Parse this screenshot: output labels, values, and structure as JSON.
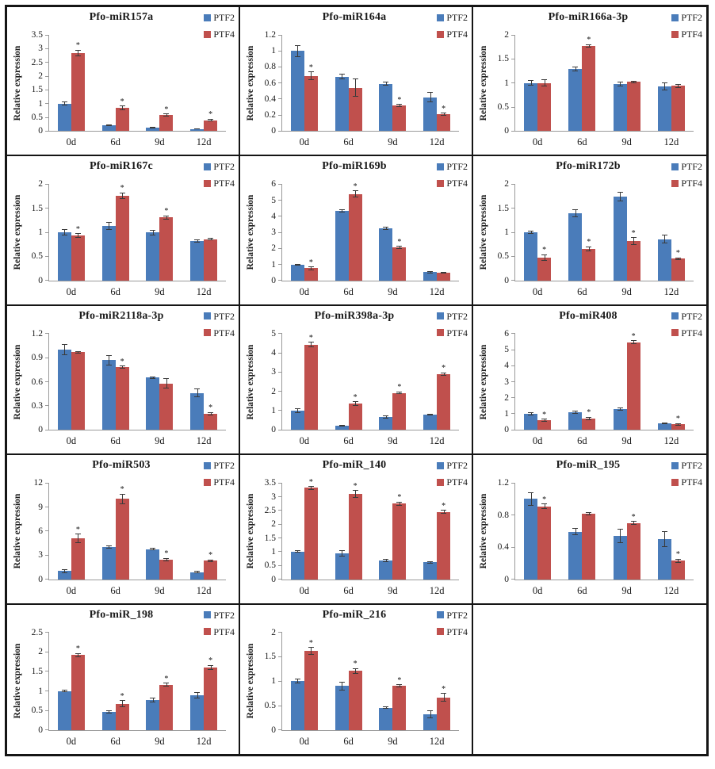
{
  "figure": {
    "ylabel": "Relative expression",
    "categories": [
      "0d",
      "6d",
      "9d",
      "12d"
    ],
    "legend": [
      "PTF2",
      "PTF4"
    ],
    "colors": {
      "ptf2": "#4A7CBA",
      "ptf4": "#C0504D",
      "axis": "#9A9A9A",
      "border": "#151515"
    }
  },
  "chart_data": [
    {
      "type": "bar",
      "title": "Pfo-miR157a",
      "ylabel": "Relative expression",
      "categories": [
        "0d",
        "6d",
        "9d",
        "12d"
      ],
      "ylim": [
        0,
        3.5
      ],
      "yticks": [
        0,
        0.5,
        1,
        1.5,
        2,
        2.5,
        3,
        3.5
      ],
      "series": [
        {
          "name": "PTF2",
          "color": "#4A7CBA",
          "values": [
            1.0,
            0.22,
            0.13,
            0.08
          ],
          "errors": [
            0.06,
            0.02,
            0.02,
            0.01
          ],
          "sig": [
            false,
            false,
            false,
            false
          ]
        },
        {
          "name": "PTF4",
          "color": "#C0504D",
          "values": [
            2.85,
            0.84,
            0.58,
            0.4
          ],
          "errors": [
            0.1,
            0.07,
            0.04,
            0.03
          ],
          "sig": [
            true,
            true,
            true,
            true
          ]
        }
      ]
    },
    {
      "type": "bar",
      "title": "Pfo-miR164a",
      "ylabel": "Relative expression",
      "categories": [
        "0d",
        "6d",
        "9d",
        "12d"
      ],
      "ylim": [
        0,
        1.2
      ],
      "yticks": [
        0,
        0.2,
        0.4,
        0.6,
        0.8,
        1,
        1.2
      ],
      "series": [
        {
          "name": "PTF2",
          "color": "#4A7CBA",
          "values": [
            1.0,
            0.68,
            0.59,
            0.42
          ],
          "errors": [
            0.07,
            0.03,
            0.02,
            0.06
          ],
          "sig": [
            false,
            false,
            false,
            false
          ]
        },
        {
          "name": "PTF4",
          "color": "#C0504D",
          "values": [
            0.69,
            0.54,
            0.32,
            0.21
          ],
          "errors": [
            0.05,
            0.11,
            0.015,
            0.015
          ],
          "sig": [
            true,
            false,
            true,
            true
          ]
        }
      ]
    },
    {
      "type": "bar",
      "title": "Pfo-miR166a-3p",
      "ylabel": "Relative expression",
      "categories": [
        "0d",
        "6d",
        "9d",
        "12d"
      ],
      "ylim": [
        0,
        2
      ],
      "yticks": [
        0,
        0.5,
        1,
        1.5,
        2
      ],
      "series": [
        {
          "name": "PTF2",
          "color": "#4A7CBA",
          "values": [
            1.0,
            1.29,
            0.98,
            0.93
          ],
          "errors": [
            0.05,
            0.04,
            0.04,
            0.08
          ],
          "sig": [
            false,
            false,
            false,
            false
          ]
        },
        {
          "name": "PTF4",
          "color": "#C0504D",
          "values": [
            1.0,
            1.77,
            1.02,
            0.94
          ],
          "errors": [
            0.07,
            0.03,
            0.02,
            0.03
          ],
          "sig": [
            false,
            true,
            false,
            false
          ]
        }
      ]
    },
    {
      "type": "bar",
      "title": "Pfo-miR167c",
      "ylabel": "Relative expression",
      "categories": [
        "0d",
        "6d",
        "9d",
        "12d"
      ],
      "ylim": [
        0,
        2
      ],
      "yticks": [
        0,
        0.5,
        1,
        1.5,
        2
      ],
      "series": [
        {
          "name": "PTF2",
          "color": "#4A7CBA",
          "values": [
            1.0,
            1.13,
            1.0,
            0.82
          ],
          "errors": [
            0.06,
            0.07,
            0.05,
            0.02
          ],
          "sig": [
            false,
            false,
            false,
            false
          ]
        },
        {
          "name": "PTF4",
          "color": "#C0504D",
          "values": [
            0.93,
            1.76,
            1.31,
            0.86
          ],
          "errors": [
            0.04,
            0.06,
            0.03,
            0.02
          ],
          "sig": [
            true,
            true,
            true,
            false
          ]
        }
      ]
    },
    {
      "type": "bar",
      "title": "Pfo-miR169b",
      "ylabel": "Relative expression",
      "categories": [
        "0d",
        "6d",
        "9d",
        "12d"
      ],
      "ylim": [
        0,
        6
      ],
      "yticks": [
        0,
        1,
        2,
        3,
        4,
        5,
        6
      ],
      "series": [
        {
          "name": "PTF2",
          "color": "#4A7CBA",
          "values": [
            0.97,
            4.33,
            3.24,
            0.52
          ],
          "errors": [
            0.04,
            0.08,
            0.07,
            0.05
          ],
          "sig": [
            false,
            false,
            false,
            false
          ]
        },
        {
          "name": "PTF4",
          "color": "#C0504D",
          "values": [
            0.76,
            5.38,
            2.06,
            0.48
          ],
          "errors": [
            0.08,
            0.2,
            0.08,
            0.04
          ],
          "sig": [
            true,
            true,
            true,
            false
          ]
        }
      ]
    },
    {
      "type": "bar",
      "title": "Pfo-miR172b",
      "ylabel": "Relative expression",
      "categories": [
        "0d",
        "6d",
        "9d",
        "12d"
      ],
      "ylim": [
        0,
        2
      ],
      "yticks": [
        0,
        0.5,
        1,
        1.5,
        2
      ],
      "series": [
        {
          "name": "PTF2",
          "color": "#4A7CBA",
          "values": [
            1.0,
            1.4,
            1.75,
            0.86
          ],
          "errors": [
            0.03,
            0.07,
            0.09,
            0.08
          ],
          "sig": [
            false,
            false,
            false,
            false
          ]
        },
        {
          "name": "PTF4",
          "color": "#C0504D",
          "values": [
            0.48,
            0.66,
            0.82,
            0.45
          ],
          "errors": [
            0.06,
            0.04,
            0.07,
            0.02
          ],
          "sig": [
            true,
            true,
            true,
            true
          ]
        }
      ]
    },
    {
      "type": "bar",
      "title": "Pfo-miR2118a-3p",
      "ylabel": "Relative expression",
      "categories": [
        "0d",
        "6d",
        "9d",
        "12d"
      ],
      "ylim": [
        0,
        1.2
      ],
      "yticks": [
        0,
        0.3,
        0.6,
        0.9,
        1.2
      ],
      "series": [
        {
          "name": "PTF2",
          "color": "#4A7CBA",
          "values": [
            1.0,
            0.87,
            0.65,
            0.46
          ],
          "errors": [
            0.06,
            0.06,
            0.01,
            0.05
          ],
          "sig": [
            false,
            false,
            false,
            false
          ]
        },
        {
          "name": "PTF4",
          "color": "#C0504D",
          "values": [
            0.97,
            0.78,
            0.58,
            0.2
          ],
          "errors": [
            0.01,
            0.015,
            0.06,
            0.015
          ],
          "sig": [
            false,
            true,
            false,
            true
          ]
        }
      ]
    },
    {
      "type": "bar",
      "title": "Pfo-miR398a-3p",
      "ylabel": "Relative expression",
      "categories": [
        "0d",
        "6d",
        "9d",
        "12d"
      ],
      "ylim": [
        0,
        5
      ],
      "yticks": [
        0,
        1,
        2,
        3,
        4,
        5
      ],
      "series": [
        {
          "name": "PTF2",
          "color": "#4A7CBA",
          "values": [
            1.0,
            0.22,
            0.68,
            0.8
          ],
          "errors": [
            0.09,
            0.03,
            0.06,
            0.03
          ],
          "sig": [
            false,
            false,
            false,
            false
          ]
        },
        {
          "name": "PTF4",
          "color": "#C0504D",
          "values": [
            4.42,
            1.35,
            1.92,
            2.9
          ],
          "errors": [
            0.12,
            0.1,
            0.05,
            0.06
          ],
          "sig": [
            true,
            true,
            true,
            true
          ]
        }
      ]
    },
    {
      "type": "bar",
      "title": "Pfo-miR408",
      "ylabel": "Relative expression",
      "categories": [
        "0d",
        "6d",
        "9d",
        "12d"
      ],
      "ylim": [
        0,
        6
      ],
      "yticks": [
        0,
        1,
        2,
        3,
        4,
        5,
        6
      ],
      "series": [
        {
          "name": "PTF2",
          "color": "#4A7CBA",
          "values": [
            1.0,
            1.1,
            1.3,
            0.4
          ],
          "errors": [
            0.08,
            0.08,
            0.07,
            0.04
          ],
          "sig": [
            false,
            false,
            false,
            false
          ]
        },
        {
          "name": "PTF4",
          "color": "#C0504D",
          "values": [
            0.6,
            0.7,
            5.45,
            0.35
          ],
          "errors": [
            0.06,
            0.08,
            0.1,
            0.05
          ],
          "sig": [
            true,
            true,
            true,
            true
          ]
        }
      ]
    },
    {
      "type": "bar",
      "title": "Pfo-miR503",
      "ylabel": "Relative expression",
      "categories": [
        "0d",
        "6d",
        "9d",
        "12d"
      ],
      "ylim": [
        0,
        12
      ],
      "yticks": [
        0,
        3,
        6,
        9,
        12
      ],
      "series": [
        {
          "name": "PTF2",
          "color": "#4A7CBA",
          "values": [
            1.0,
            4.0,
            3.75,
            0.9
          ],
          "errors": [
            0.15,
            0.12,
            0.1,
            0.1
          ],
          "sig": [
            false,
            false,
            false,
            false
          ]
        },
        {
          "name": "PTF4",
          "color": "#C0504D",
          "values": [
            5.1,
            10.0,
            2.45,
            2.3
          ],
          "errors": [
            0.5,
            0.6,
            0.15,
            0.1
          ],
          "sig": [
            true,
            true,
            true,
            true
          ]
        }
      ]
    },
    {
      "type": "bar",
      "title": "Pfo-miR_140",
      "ylabel": "Relative expression",
      "categories": [
        "0d",
        "6d",
        "9d",
        "12d"
      ],
      "ylim": [
        0,
        3.5
      ],
      "yticks": [
        0,
        0.5,
        1,
        1.5,
        2,
        2.5,
        3,
        3.5
      ],
      "series": [
        {
          "name": "PTF2",
          "color": "#4A7CBA",
          "values": [
            1.0,
            0.95,
            0.68,
            0.61
          ],
          "errors": [
            0.03,
            0.1,
            0.03,
            0.03
          ],
          "sig": [
            false,
            false,
            false,
            false
          ]
        },
        {
          "name": "PTF4",
          "color": "#C0504D",
          "values": [
            3.32,
            3.1,
            2.75,
            2.45
          ],
          "errors": [
            0.05,
            0.12,
            0.06,
            0.06
          ],
          "sig": [
            true,
            true,
            true,
            true
          ]
        }
      ]
    },
    {
      "type": "bar",
      "title": "Pfo-miR_195",
      "ylabel": "Relative expression",
      "categories": [
        "0d",
        "6d",
        "9d",
        "12d"
      ],
      "ylim": [
        0,
        1.2
      ],
      "yticks": [
        0,
        0.4,
        0.8,
        1.2
      ],
      "series": [
        {
          "name": "PTF2",
          "color": "#4A7CBA",
          "values": [
            1.0,
            0.59,
            0.54,
            0.5
          ],
          "errors": [
            0.08,
            0.04,
            0.08,
            0.09
          ],
          "sig": [
            false,
            false,
            false,
            false
          ]
        },
        {
          "name": "PTF4",
          "color": "#C0504D",
          "values": [
            0.91,
            0.82,
            0.7,
            0.23
          ],
          "errors": [
            0.03,
            0.015,
            0.02,
            0.02
          ],
          "sig": [
            true,
            false,
            true,
            true
          ]
        }
      ]
    },
    {
      "type": "bar",
      "title": "Pfo-miR_198",
      "ylabel": "Relative expression",
      "categories": [
        "0d",
        "6d",
        "9d",
        "12d"
      ],
      "ylim": [
        0,
        2.5
      ],
      "yticks": [
        0,
        0.5,
        1,
        1.5,
        2,
        2.5
      ],
      "series": [
        {
          "name": "PTF2",
          "color": "#4A7CBA",
          "values": [
            1.0,
            0.46,
            0.77,
            0.9
          ],
          "errors": [
            0.02,
            0.03,
            0.06,
            0.07
          ],
          "sig": [
            false,
            false,
            false,
            false
          ]
        },
        {
          "name": "PTF4",
          "color": "#C0504D",
          "values": [
            1.92,
            0.67,
            1.16,
            1.61
          ],
          "errors": [
            0.04,
            0.08,
            0.04,
            0.05
          ],
          "sig": [
            true,
            true,
            true,
            true
          ]
        }
      ]
    },
    {
      "type": "bar",
      "title": "Pfo-miR_216",
      "ylabel": "Relative expression",
      "categories": [
        "0d",
        "6d",
        "9d",
        "12d"
      ],
      "ylim": [
        0,
        2
      ],
      "yticks": [
        0,
        0.5,
        1,
        1.5,
        2
      ],
      "series": [
        {
          "name": "PTF2",
          "color": "#4A7CBA",
          "values": [
            1.0,
            0.9,
            0.46,
            0.32
          ],
          "errors": [
            0.04,
            0.08,
            0.02,
            0.07
          ],
          "sig": [
            false,
            false,
            false,
            false
          ]
        },
        {
          "name": "PTF4",
          "color": "#C0504D",
          "values": [
            1.62,
            1.21,
            0.91,
            0.67
          ],
          "errors": [
            0.07,
            0.05,
            0.02,
            0.08
          ],
          "sig": [
            true,
            true,
            true,
            true
          ]
        }
      ]
    }
  ]
}
